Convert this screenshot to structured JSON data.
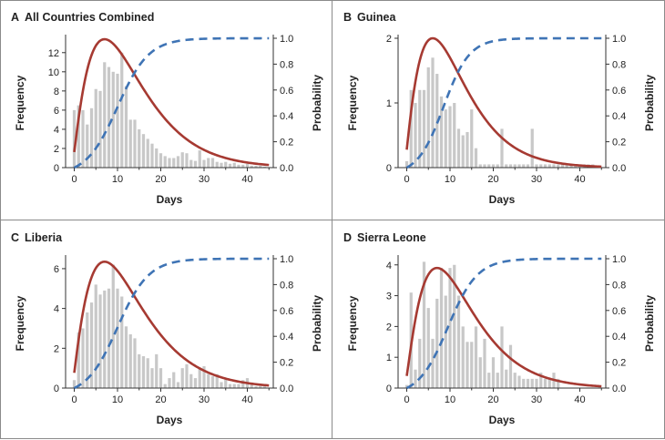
{
  "chart_data": [
    {
      "type": "bar",
      "panel_letter": "A",
      "title": "All Countries Combined",
      "xlabel": "Days",
      "ylabel": "Frequency",
      "y2label": "Probability",
      "xlim": [
        -2,
        46
      ],
      "xticks": [
        0,
        10,
        20,
        30,
        40
      ],
      "ylim": [
        0,
        13.5
      ],
      "yticks": [
        0,
        2,
        4,
        6,
        8,
        10,
        12
      ],
      "y2lim": [
        0,
        1.0
      ],
      "y2ticks": [
        "0.0",
        "0.2",
        "0.4",
        "0.6",
        "0.8",
        "1.0"
      ],
      "grid": false,
      "bar_color": "#c8c8c8",
      "pdf_color": "#a63a32",
      "cdf_color": "#3f74b5",
      "x": [
        0,
        1,
        2,
        3,
        4,
        5,
        6,
        7,
        8,
        9,
        10,
        11,
        12,
        13,
        14,
        15,
        16,
        17,
        18,
        19,
        20,
        21,
        22,
        23,
        24,
        25,
        26,
        27,
        28,
        29,
        30,
        31,
        32,
        33,
        34,
        35,
        36,
        37,
        38,
        39,
        40,
        41,
        42,
        43,
        44
      ],
      "values": [
        6.0,
        6.5,
        6.0,
        4.5,
        6.2,
        8.2,
        8.0,
        11.0,
        10.5,
        10.0,
        9.8,
        12.0,
        8.5,
        5.0,
        5.0,
        4.0,
        3.5,
        3.0,
        2.5,
        2.0,
        1.5,
        1.2,
        1.0,
        1.0,
        1.2,
        1.6,
        1.5,
        0.8,
        0.7,
        1.8,
        0.8,
        1.0,
        1.0,
        0.6,
        0.5,
        0.6,
        0.4,
        0.5,
        0.3,
        0.3,
        0.4,
        0.2,
        0.2,
        0.2,
        0.1
      ],
      "pdf_peak_day": 7,
      "pdf_peak_value": 13.4,
      "pdf_zero_at": -0.5,
      "pdf_decay_tau": 6.3,
      "cdf_median_day": 10,
      "cdf_scale": 3.6
    },
    {
      "type": "bar",
      "panel_letter": "B",
      "title": "Guinea",
      "xlabel": "Days",
      "ylabel": "Frequency",
      "y2label": "Probability",
      "xlim": [
        -2,
        46
      ],
      "xticks": [
        0,
        10,
        20,
        30,
        40
      ],
      "ylim": [
        0,
        2.0
      ],
      "yticks": [
        0,
        1,
        2
      ],
      "y2lim": [
        0,
        1.0
      ],
      "y2ticks": [
        "0.0",
        "0.2",
        "0.4",
        "0.6",
        "0.8",
        "1.0"
      ],
      "grid": false,
      "bar_color": "#c8c8c8",
      "pdf_color": "#a63a32",
      "cdf_color": "#3f74b5",
      "x": [
        0,
        1,
        2,
        3,
        4,
        5,
        6,
        7,
        8,
        9,
        10,
        11,
        12,
        13,
        14,
        15,
        16,
        17,
        18,
        19,
        20,
        21,
        22,
        23,
        24,
        25,
        26,
        27,
        28,
        29,
        30,
        31,
        32,
        33,
        34,
        35,
        36,
        37,
        38,
        39,
        40,
        41,
        42,
        43,
        44
      ],
      "values": [
        0.1,
        1.2,
        1.0,
        1.2,
        1.2,
        1.55,
        1.7,
        1.45,
        1.1,
        0.9,
        0.95,
        1.0,
        0.6,
        0.5,
        0.55,
        0.9,
        0.3,
        0.05,
        0.05,
        0.05,
        0.05,
        0.05,
        0.6,
        0.05,
        0.05,
        0.05,
        0.05,
        0.05,
        0.05,
        0.6,
        0.05,
        0.05,
        0.05,
        0.05,
        0.05,
        0.05,
        0.05,
        0.05,
        0.05,
        0.05,
        0.05,
        0.05,
        0.05,
        0.05,
        0.0
      ],
      "pdf_peak_day": 6,
      "pdf_peak_value": 2.0,
      "pdf_zero_at": -0.5,
      "pdf_decay_tau": 5.4,
      "cdf_median_day": 8.5,
      "cdf_scale": 3.0
    },
    {
      "type": "bar",
      "panel_letter": "C",
      "title": "Liberia",
      "xlabel": "Days",
      "ylabel": "Frequency",
      "y2label": "Probability",
      "xlim": [
        -2,
        46
      ],
      "xticks": [
        0,
        10,
        20,
        30,
        40
      ],
      "ylim": [
        0,
        6.5
      ],
      "yticks": [
        0,
        2,
        4,
        6
      ],
      "y2lim": [
        0,
        1.0
      ],
      "y2ticks": [
        "0.0",
        "0.2",
        "0.4",
        "0.6",
        "0.8",
        "1.0"
      ],
      "grid": false,
      "bar_color": "#c8c8c8",
      "pdf_color": "#a63a32",
      "cdf_color": "#3f74b5",
      "x": [
        0,
        1,
        2,
        3,
        4,
        5,
        6,
        7,
        8,
        9,
        10,
        11,
        12,
        13,
        14,
        15,
        16,
        17,
        18,
        19,
        20,
        21,
        22,
        23,
        24,
        25,
        26,
        27,
        28,
        29,
        30,
        31,
        32,
        33,
        34,
        35,
        36,
        37,
        38,
        39,
        40,
        41,
        42,
        43,
        44
      ],
      "values": [
        0.4,
        2.8,
        3.0,
        3.8,
        4.3,
        5.2,
        4.7,
        4.9,
        5.0,
        6.2,
        5.0,
        4.6,
        3.1,
        2.7,
        2.5,
        1.7,
        1.6,
        1.5,
        1.0,
        1.7,
        1.0,
        0.2,
        0.5,
        0.8,
        0.3,
        1.0,
        1.2,
        0.7,
        0.5,
        1.0,
        1.1,
        0.7,
        0.6,
        0.7,
        0.3,
        0.5,
        0.2,
        0.2,
        0.2,
        0.4,
        0.5,
        0.2,
        0.1,
        0.1,
        0.1
      ],
      "pdf_peak_day": 7,
      "pdf_peak_value": 6.35,
      "pdf_zero_at": -0.5,
      "pdf_decay_tau": 6.3,
      "cdf_median_day": 10,
      "cdf_scale": 3.6
    },
    {
      "type": "bar",
      "panel_letter": "D",
      "title": "Sierra Leone",
      "xlabel": "Days",
      "ylabel": "Frequency",
      "y2label": "Probability",
      "xlim": [
        -2,
        46
      ],
      "xticks": [
        0,
        10,
        20,
        30,
        40
      ],
      "ylim": [
        0,
        4.2
      ],
      "yticks": [
        0,
        1,
        2,
        3,
        4
      ],
      "y2lim": [
        0,
        1.0
      ],
      "y2ticks": [
        "0.0",
        "0.2",
        "0.4",
        "0.6",
        "0.8",
        "1.0"
      ],
      "grid": false,
      "bar_color": "#c8c8c8",
      "pdf_color": "#a63a32",
      "cdf_color": "#3f74b5",
      "x": [
        0,
        1,
        2,
        3,
        4,
        5,
        6,
        7,
        8,
        9,
        10,
        11,
        12,
        13,
        14,
        15,
        16,
        17,
        18,
        19,
        20,
        21,
        22,
        23,
        24,
        25,
        26,
        27,
        28,
        29,
        30,
        31,
        32,
        33,
        34,
        35,
        36,
        37,
        38,
        39,
        40,
        41,
        42,
        43,
        44
      ],
      "values": [
        0.1,
        3.1,
        0.6,
        1.6,
        4.1,
        2.6,
        1.6,
        2.9,
        3.9,
        3.0,
        3.9,
        4.0,
        3.0,
        2.0,
        1.5,
        1.5,
        2.0,
        1.0,
        1.6,
        0.5,
        1.0,
        0.5,
        2.0,
        0.6,
        1.4,
        0.5,
        0.4,
        0.3,
        0.3,
        0.3,
        0.3,
        0.5,
        0.3,
        0.3,
        0.5,
        0.3,
        0.0,
        0.0,
        0.0,
        0.0,
        0.0,
        0.0,
        0.0,
        0.0,
        0.0
      ],
      "pdf_peak_day": 7,
      "pdf_peak_value": 3.9,
      "pdf_zero_at": -0.5,
      "pdf_decay_tau": 5.8,
      "cdf_median_day": 9.5,
      "cdf_scale": 3.4
    }
  ]
}
